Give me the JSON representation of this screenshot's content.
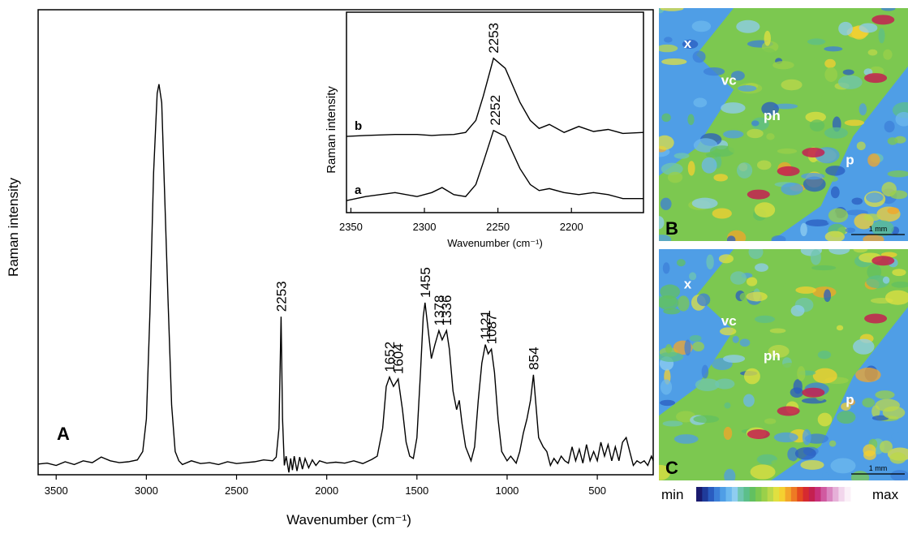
{
  "chart_data": [
    {
      "type": "line",
      "panel_label": "A",
      "x_label": "Wavenumber (cm⁻¹)",
      "y_label": "Raman intensity",
      "xlim": [
        3600,
        190
      ],
      "xticks": [
        3500,
        3000,
        2500,
        2000,
        1500,
        1000,
        500
      ],
      "ylim": [
        0,
        100
      ],
      "x": [
        3600,
        3550,
        3500,
        3450,
        3400,
        3350,
        3300,
        3250,
        3200,
        3150,
        3100,
        3050,
        3020,
        3000,
        2980,
        2960,
        2940,
        2930,
        2915,
        2900,
        2880,
        2860,
        2840,
        2820,
        2800,
        2750,
        2700,
        2650,
        2600,
        2550,
        2500,
        2450,
        2400,
        2350,
        2300,
        2280,
        2265,
        2253,
        2245,
        2235,
        2225,
        2210,
        2200,
        2190,
        2180,
        2165,
        2150,
        2135,
        2120,
        2100,
        2080,
        2060,
        2040,
        2000,
        1950,
        1900,
        1850,
        1800,
        1750,
        1720,
        1690,
        1670,
        1652,
        1630,
        1604,
        1580,
        1560,
        1540,
        1520,
        1500,
        1480,
        1465,
        1455,
        1440,
        1420,
        1400,
        1378,
        1360,
        1336,
        1320,
        1300,
        1280,
        1265,
        1250,
        1230,
        1200,
        1180,
        1160,
        1140,
        1121,
        1105,
        1087,
        1070,
        1050,
        1030,
        1000,
        980,
        950,
        930,
        910,
        890,
        870,
        854,
        840,
        825,
        800,
        780,
        760,
        740,
        720,
        700,
        680,
        660,
        640,
        620,
        600,
        580,
        560,
        540,
        520,
        500,
        480,
        460,
        440,
        420,
        400,
        380,
        360,
        340,
        320,
        300,
        280,
        260,
        240,
        220,
        200,
        190
      ],
      "series": [
        {
          "color": "#000000",
          "values": [
            2.3,
            2.5,
            2.0,
            2.8,
            2.2,
            3.0,
            2.6,
            3.8,
            3.0,
            2.6,
            2.8,
            3.2,
            5,
            12,
            35,
            65,
            82,
            84,
            80,
            62,
            38,
            15,
            5,
            3,
            2.2,
            3.0,
            2.4,
            2.6,
            2.2,
            2.8,
            2.4,
            2.6,
            2.8,
            3.2,
            3.0,
            3.8,
            10,
            34,
            12,
            2,
            4,
            0.5,
            3.5,
            1,
            4,
            0.8,
            3.8,
            1.2,
            3.5,
            1.5,
            3.2,
            2,
            3,
            2.5,
            2.7,
            2.5,
            3,
            2.4,
            3.3,
            4,
            10,
            19,
            21,
            19,
            20.6,
            14,
            7,
            4,
            3.5,
            8,
            22,
            34,
            37,
            32,
            25,
            28,
            31,
            29,
            31,
            27,
            18,
            14,
            16,
            11,
            6,
            3,
            6,
            16,
            24,
            28,
            26,
            27,
            22,
            12,
            5,
            3,
            4,
            2.5,
            5,
            9,
            12,
            16,
            21.5,
            15,
            8,
            6,
            5,
            2,
            3.5,
            2.4,
            4,
            3,
            2.5,
            6,
            3,
            5.5,
            2.5,
            6.5,
            3,
            5,
            3,
            7,
            4,
            6.5,
            3,
            6,
            3,
            7,
            8,
            5,
            2,
            3,
            2.5,
            3,
            2,
            4,
            3
          ]
        }
      ],
      "peaks": {
        "x": [
          2253,
          1652,
          1604,
          1455,
          1378,
          1336,
          1121,
          1087,
          854
        ],
        "values": [
          34,
          21,
          20.6,
          37,
          31,
          31,
          28,
          27,
          21.5
        ]
      }
    },
    {
      "type": "line",
      "x_label": "Wavenumber (cm⁻¹)",
      "y_label": "Raman intensity",
      "xlim": [
        2353,
        2151
      ],
      "xticks": [
        2350,
        2300,
        2250,
        2200
      ],
      "ylim": [
        0,
        100
      ],
      "x": [
        2353,
        2340,
        2320,
        2305,
        2295,
        2288,
        2280,
        2272,
        2265,
        2260,
        2253,
        2245,
        2235,
        2228,
        2222,
        2215,
        2205,
        2195,
        2185,
        2175,
        2165,
        2151
      ],
      "series": [
        {
          "name": "b",
          "color": "#000000",
          "values": [
            38,
            38.5,
            39,
            39,
            38.5,
            38.8,
            39,
            40,
            46,
            58,
            77,
            72,
            55,
            46,
            42,
            44,
            40,
            43,
            40.5,
            41.5,
            39.5,
            40
          ]
        },
        {
          "name": "a",
          "color": "#000000",
          "values": [
            6,
            8,
            10,
            8,
            10,
            12.5,
            9,
            8,
            14,
            25,
            41,
            38,
            22,
            14,
            11,
            12,
            10,
            9,
            10,
            9,
            7,
            7
          ]
        }
      ],
      "peaks": {
        "x": [
          2253,
          2252
        ],
        "values": [
          77,
          41
        ]
      }
    }
  ],
  "maps": [
    {
      "panel": "B",
      "labels": [
        "x",
        "vc",
        "ph",
        "p"
      ],
      "scale": "1 mm"
    },
    {
      "panel": "C",
      "labels": [
        "x",
        "vc",
        "ph",
        "p"
      ],
      "scale": "1 mm"
    }
  ],
  "colorbar": {
    "min": "min",
    "max": "max",
    "colors": [
      "#1a1a6e",
      "#1f3b9a",
      "#2a5cc0",
      "#3c7fd8",
      "#4f9ee6",
      "#6cb8ee",
      "#8fcdf0",
      "#6fc6b0",
      "#5cbf8a",
      "#62c060",
      "#7cc850",
      "#9ad04a",
      "#bcd84a",
      "#e0e040",
      "#f5d030",
      "#f3a62a",
      "#ee7a24",
      "#e44a20",
      "#d62a30",
      "#c42050",
      "#c8307a",
      "#d05aa0",
      "#da86c0",
      "#e6b0d8",
      "#f2d6ec",
      "#fbf0f8"
    ]
  }
}
